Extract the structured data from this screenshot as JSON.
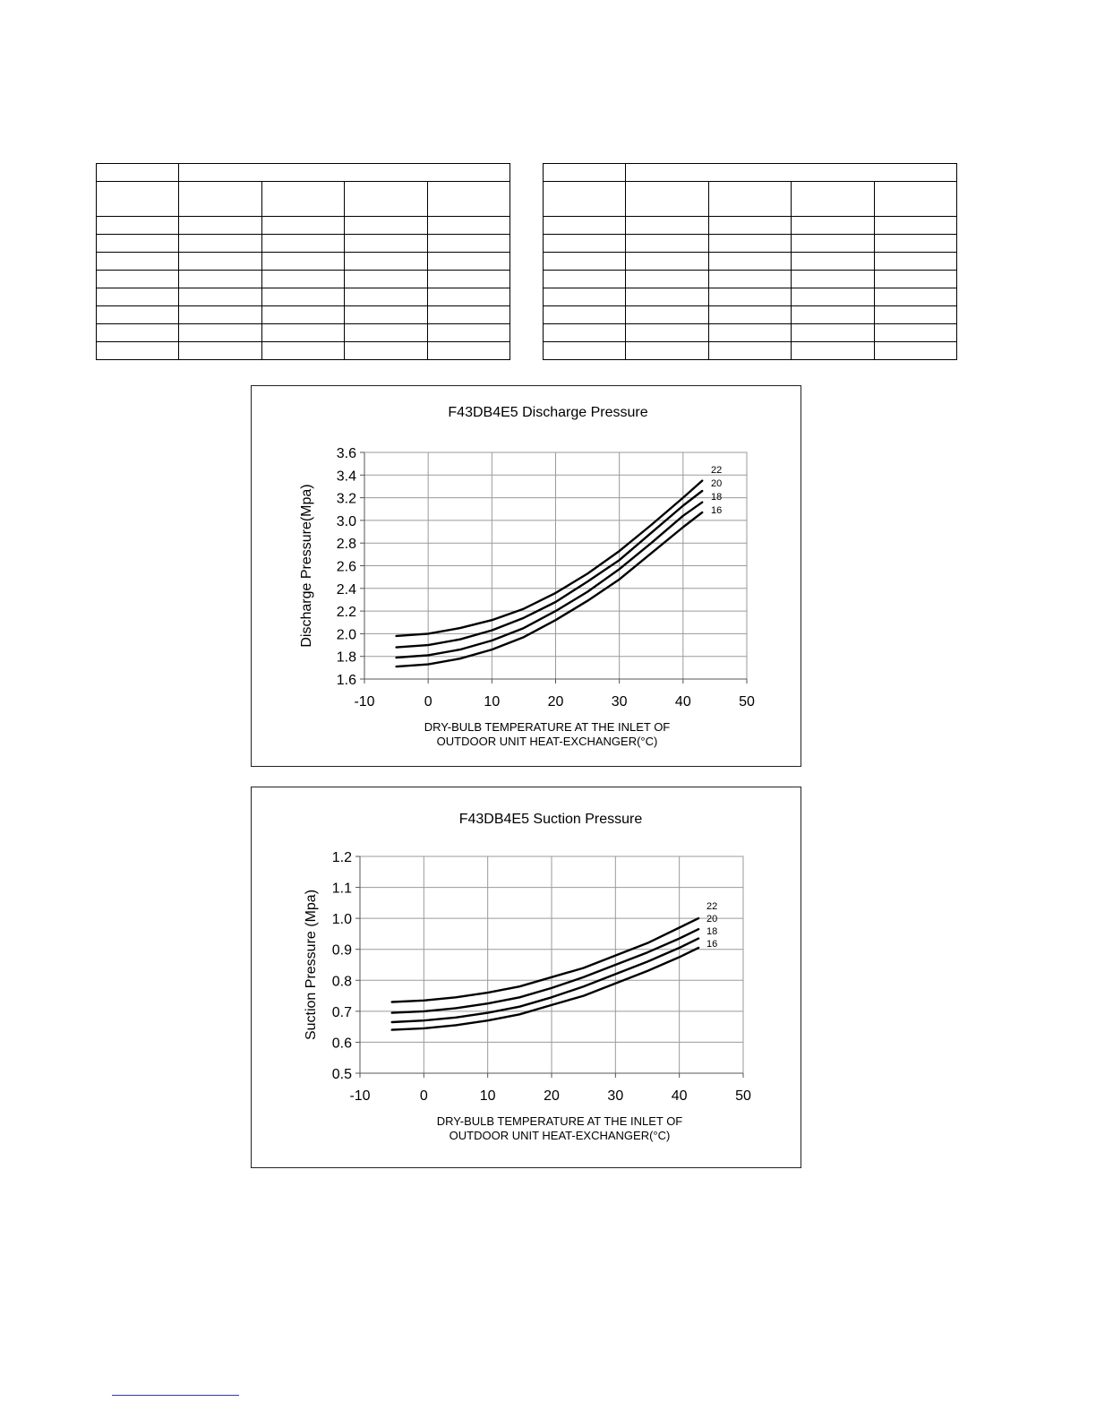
{
  "tables": [
    {
      "rows": 10,
      "cols": 5
    },
    {
      "rows": 10,
      "cols": 5
    }
  ],
  "chart_data": [
    {
      "type": "line",
      "title": "F43DB4E5 Discharge Pressure",
      "xlabel": [
        "DRY-BULB TEMPERATURE AT THE INLET OF",
        "OUTDOOR UNIT HEAT-EXCHANGER(°C)"
      ],
      "ylabel": "Discharge Pressure(Mpa)",
      "xlim": [
        -10,
        50
      ],
      "ylim": [
        1.6,
        3.6
      ],
      "xticks": [
        -10,
        0,
        10,
        20,
        30,
        40,
        50
      ],
      "yticks": [
        1.6,
        1.8,
        2.0,
        2.2,
        2.4,
        2.6,
        2.8,
        3.0,
        3.2,
        3.4,
        3.6
      ],
      "ytick_decimals": 1,
      "grid": true,
      "x": [
        -5,
        0,
        5,
        10,
        15,
        20,
        25,
        30,
        35,
        40,
        43
      ],
      "series": [
        {
          "name": "22",
          "values": [
            1.98,
            2.0,
            2.05,
            2.12,
            2.22,
            2.36,
            2.53,
            2.73,
            2.96,
            3.2,
            3.35
          ]
        },
        {
          "name": "20",
          "values": [
            1.88,
            1.9,
            1.95,
            2.03,
            2.14,
            2.28,
            2.46,
            2.65,
            2.89,
            3.13,
            3.26
          ]
        },
        {
          "name": "18",
          "values": [
            1.79,
            1.81,
            1.86,
            1.94,
            2.05,
            2.2,
            2.37,
            2.57,
            2.8,
            3.04,
            3.16
          ]
        },
        {
          "name": "16",
          "values": [
            1.71,
            1.73,
            1.78,
            1.86,
            1.97,
            2.12,
            2.29,
            2.48,
            2.71,
            2.94,
            3.07
          ]
        }
      ]
    },
    {
      "type": "line",
      "title": "F43DB4E5 Suction Pressure",
      "xlabel": [
        "DRY-BULB TEMPERATURE AT THE INLET OF",
        "OUTDOOR UNIT HEAT-EXCHANGER(°C)"
      ],
      "ylabel": "Suction Pressure (Mpa)",
      "xlim": [
        -10,
        50
      ],
      "ylim": [
        0.5,
        1.2
      ],
      "xticks": [
        -10,
        0,
        10,
        20,
        30,
        40,
        50
      ],
      "yticks": [
        0.5,
        0.6,
        0.7,
        0.8,
        0.9,
        1.0,
        1.1,
        1.2
      ],
      "ytick_decimals": 1,
      "grid": true,
      "x": [
        -5,
        0,
        5,
        10,
        15,
        20,
        25,
        30,
        35,
        40,
        43
      ],
      "series": [
        {
          "name": "22",
          "values": [
            0.73,
            0.735,
            0.745,
            0.76,
            0.78,
            0.81,
            0.84,
            0.88,
            0.92,
            0.97,
            1.0
          ]
        },
        {
          "name": "20",
          "values": [
            0.695,
            0.7,
            0.71,
            0.725,
            0.745,
            0.775,
            0.81,
            0.85,
            0.89,
            0.935,
            0.965
          ]
        },
        {
          "name": "18",
          "values": [
            0.665,
            0.67,
            0.68,
            0.695,
            0.715,
            0.745,
            0.78,
            0.82,
            0.86,
            0.905,
            0.935
          ]
        },
        {
          "name": "16",
          "values": [
            0.64,
            0.645,
            0.655,
            0.67,
            0.69,
            0.72,
            0.75,
            0.79,
            0.83,
            0.875,
            0.905
          ]
        }
      ]
    }
  ]
}
